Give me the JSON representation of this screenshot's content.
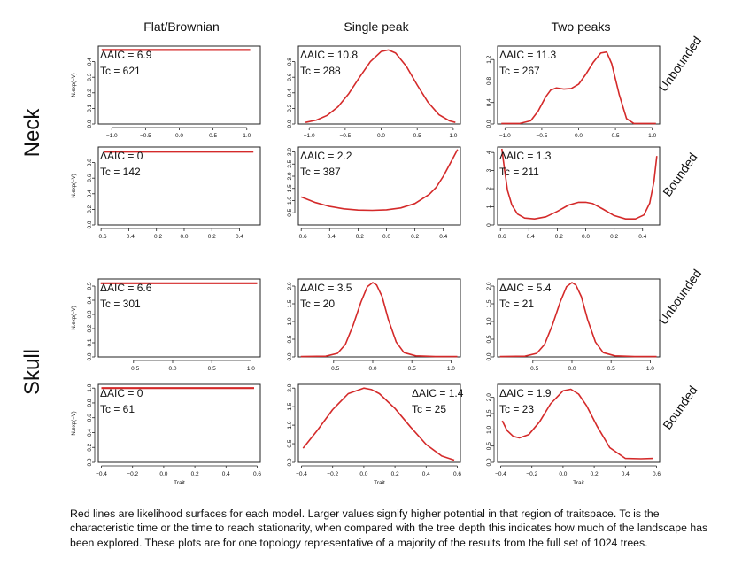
{
  "columns": [
    "Flat/Brownian",
    "Single peak",
    "Two peaks"
  ],
  "row_groups": [
    "Neck",
    "Skull"
  ],
  "row_types": [
    "Unbounded",
    "Bounded"
  ],
  "colors": {
    "curve": "#d42a2a",
    "axis": "#222222"
  },
  "caption": "Red lines are likelihood surfaces for each model. Larger values signify higher potential in that region of traitspace.  Tc is the characteristic time or the time to reach stationarity, when compared with the tree depth this indicates how much of the landscape has been explored. These plots are for one topology representative of a majority of the results from the full set of 1024 trees.",
  "chart_data": [
    {
      "type": "line",
      "group": "Neck",
      "model": "Flat/Brownian",
      "bounds": "Unbounded",
      "delta_aic": "ΔAIC = 6.9",
      "tc": "Tc = 621",
      "ylabel": "N.exp(−V)",
      "xlim": [
        -1.2,
        1.2
      ],
      "ylim": [
        0,
        0.5
      ],
      "xticks": [
        -1.0,
        -0.5,
        0.0,
        0.5,
        1.0
      ],
      "xtick_labels": [
        "−1.0",
        "−0.5",
        "0.0",
        "0.5",
        "1.0"
      ],
      "yticks": [
        0,
        0.1,
        0.2,
        0.3,
        0.4
      ],
      "ytick_labels": [
        "0.0",
        "0.1",
        "0.2",
        "0.3",
        "0.4"
      ],
      "x": [
        -1.15,
        1.05
      ],
      "y": [
        0.475,
        0.475
      ]
    },
    {
      "type": "line",
      "group": "Neck",
      "model": "Single peak",
      "bounds": "Unbounded",
      "delta_aic": "ΔAIC = 10.8",
      "tc": "Tc = 288",
      "xlim": [
        -1.15,
        1.1
      ],
      "ylim": [
        0,
        1.0
      ],
      "xticks": [
        -1.0,
        -0.5,
        0.0,
        0.5,
        1.0
      ],
      "xtick_labels": [
        "−1.0",
        "−0.5",
        "0.0",
        "0.5",
        "1.0"
      ],
      "yticks": [
        0,
        0.2,
        0.4,
        0.6,
        0.8
      ],
      "ytick_labels": [
        "0.0",
        "0.2",
        "0.4",
        "0.6",
        "0.8"
      ],
      "x": [
        -1.05,
        -0.9,
        -0.75,
        -0.6,
        -0.45,
        -0.3,
        -0.15,
        0.0,
        0.1,
        0.2,
        0.35,
        0.5,
        0.65,
        0.8,
        0.95,
        1.03
      ],
      "y": [
        0.02,
        0.05,
        0.11,
        0.22,
        0.39,
        0.6,
        0.8,
        0.93,
        0.95,
        0.91,
        0.74,
        0.5,
        0.28,
        0.12,
        0.04,
        0.02
      ]
    },
    {
      "type": "line",
      "group": "Neck",
      "model": "Two peaks",
      "bounds": "Unbounded",
      "delta_aic": "ΔAIC = 11.3",
      "tc": "Tc = 267",
      "xlim": [
        -1.1,
        1.1
      ],
      "ylim": [
        0,
        1.45
      ],
      "xticks": [
        -1.0,
        -0.5,
        0.0,
        0.5,
        1.0
      ],
      "xtick_labels": [
        "−1.0",
        "−0.5",
        "0.0",
        "0.5",
        "1.0"
      ],
      "yticks": [
        0,
        0.4,
        0.8,
        1.2
      ],
      "ytick_labels": [
        "0.0",
        "0.4",
        "0.8",
        "1.2"
      ],
      "x": [
        -1.05,
        -0.8,
        -0.65,
        -0.55,
        -0.45,
        -0.38,
        -0.3,
        -0.2,
        -0.1,
        0.0,
        0.1,
        0.2,
        0.3,
        0.38,
        0.45,
        0.55,
        0.65,
        0.75,
        1.05
      ],
      "y": [
        0.01,
        0.01,
        0.06,
        0.24,
        0.5,
        0.63,
        0.67,
        0.65,
        0.66,
        0.74,
        0.93,
        1.15,
        1.32,
        1.34,
        1.12,
        0.55,
        0.1,
        0.01,
        0.01
      ]
    },
    {
      "type": "line",
      "group": "Neck",
      "model": "Flat/Brownian",
      "bounds": "Bounded",
      "delta_aic": "ΔAIC = 0",
      "tc": "Tc = 142",
      "ylabel": "N.exp(−V)",
      "xlim": [
        -0.62,
        0.55
      ],
      "ylim": [
        0,
        1.0
      ],
      "xticks": [
        -0.6,
        -0.4,
        -0.2,
        0.0,
        0.2,
        0.4
      ],
      "xtick_labels": [
        "−0.6",
        "−0.4",
        "−0.2",
        "0.0",
        "0.2",
        "0.4"
      ],
      "yticks": [
        0,
        0.2,
        0.4,
        0.6,
        0.8
      ],
      "ytick_labels": [
        "0.0",
        "0.2",
        "0.4",
        "0.6",
        "0.8"
      ],
      "x": [
        -0.58,
        0.5
      ],
      "y": [
        0.94,
        0.94
      ]
    },
    {
      "type": "line",
      "group": "Neck",
      "model": "Single peak",
      "bounds": "Bounded",
      "delta_aic": "ΔAIC = 2.2",
      "tc": "Tc = 387",
      "xlim": [
        -0.62,
        0.52
      ],
      "ylim": [
        0,
        3.2
      ],
      "xticks": [
        -0.6,
        -0.4,
        -0.2,
        0.0,
        0.2,
        0.4
      ],
      "xtick_labels": [
        "−0.6",
        "−0.4",
        "−0.2",
        "0.0",
        "0.2",
        "0.4"
      ],
      "yticks": [
        0.5,
        1.0,
        1.5,
        2.0,
        2.5,
        3.0
      ],
      "ytick_labels": [
        "0.5",
        "1.0",
        "1.5",
        "2.0",
        "2.5",
        "3.0"
      ],
      "x": [
        -0.6,
        -0.5,
        -0.4,
        -0.3,
        -0.2,
        -0.1,
        0.0,
        0.1,
        0.2,
        0.3,
        0.35,
        0.4,
        0.45,
        0.5
      ],
      "y": [
        1.15,
        0.92,
        0.76,
        0.66,
        0.61,
        0.6,
        0.62,
        0.7,
        0.88,
        1.25,
        1.55,
        2.0,
        2.55,
        3.1
      ]
    },
    {
      "type": "line",
      "group": "Neck",
      "model": "Two peaks",
      "bounds": "Bounded",
      "delta_aic": "ΔAIC = 1.3",
      "tc": "Tc = 211",
      "xlim": [
        -0.62,
        0.52
      ],
      "ylim": [
        0,
        4.3
      ],
      "xticks": [
        -0.6,
        -0.4,
        -0.2,
        0.0,
        0.2,
        0.4
      ],
      "xtick_labels": [
        "−0.6",
        "−0.4",
        "−0.2",
        "0.0",
        "0.2",
        "0.4"
      ],
      "yticks": [
        0,
        1,
        2,
        3,
        4
      ],
      "ytick_labels": [
        "0",
        "1",
        "2",
        "3",
        "4"
      ],
      "x": [
        -0.59,
        -0.57,
        -0.55,
        -0.52,
        -0.48,
        -0.43,
        -0.36,
        -0.28,
        -0.2,
        -0.12,
        -0.05,
        0.0,
        0.05,
        0.12,
        0.2,
        0.28,
        0.35,
        0.41,
        0.45,
        0.48,
        0.5
      ],
      "y": [
        4.2,
        3.0,
        1.9,
        1.1,
        0.6,
        0.38,
        0.33,
        0.45,
        0.75,
        1.1,
        1.25,
        1.25,
        1.18,
        0.88,
        0.52,
        0.33,
        0.33,
        0.55,
        1.2,
        2.4,
        3.8
      ]
    },
    {
      "type": "line",
      "group": "Skull",
      "model": "Flat/Brownian",
      "bounds": "Unbounded",
      "delta_aic": "ΔAIC = 6.6",
      "tc": "Tc = 301",
      "ylabel": "N.exp(−V)",
      "xlim": [
        -0.95,
        1.12
      ],
      "ylim": [
        0,
        0.55
      ],
      "xticks": [
        -0.5,
        0.0,
        0.5,
        1.0
      ],
      "xtick_labels": [
        "−0.5",
        "0.0",
        "0.5",
        "1.0"
      ],
      "yticks": [
        0,
        0.1,
        0.2,
        0.3,
        0.4,
        0.5
      ],
      "ytick_labels": [
        "0.0",
        "0.1",
        "0.2",
        "0.3",
        "0.4",
        "0.5"
      ],
      "x": [
        -0.92,
        1.08
      ],
      "y": [
        0.52,
        0.52
      ]
    },
    {
      "type": "line",
      "group": "Skull",
      "model": "Single peak",
      "bounds": "Unbounded",
      "delta_aic": "ΔAIC = 3.5",
      "tc": "Tc = 20",
      "xlim": [
        -0.95,
        1.12
      ],
      "ylim": [
        0,
        2.2
      ],
      "xticks": [
        -0.5,
        0.0,
        0.5,
        1.0
      ],
      "xtick_labels": [
        "−0.5",
        "0.0",
        "0.5",
        "1.0"
      ],
      "yticks": [
        0,
        0.5,
        1.0,
        1.5,
        2.0
      ],
      "ytick_labels": [
        "0.0",
        "0.5",
        "1.0",
        "1.5",
        "2.0"
      ],
      "x": [
        -0.92,
        -0.6,
        -0.45,
        -0.35,
        -0.25,
        -0.15,
        -0.07,
        0.0,
        0.05,
        0.12,
        0.2,
        0.3,
        0.4,
        0.55,
        0.8,
        1.08
      ],
      "y": [
        0.01,
        0.02,
        0.1,
        0.35,
        0.9,
        1.55,
        1.98,
        2.1,
        2.03,
        1.7,
        1.05,
        0.42,
        0.12,
        0.03,
        0.01,
        0.01
      ]
    },
    {
      "type": "line",
      "group": "Skull",
      "model": "Two peaks",
      "bounds": "Unbounded",
      "delta_aic": "ΔAIC = 5.4",
      "tc": "Tc = 21",
      "xlim": [
        -0.95,
        1.12
      ],
      "ylim": [
        0,
        2.2
      ],
      "xticks": [
        -0.5,
        0.0,
        0.5,
        1.0
      ],
      "xtick_labels": [
        "−0.5",
        "0.0",
        "0.5",
        "1.0"
      ],
      "yticks": [
        0,
        0.5,
        1.0,
        1.5,
        2.0
      ],
      "ytick_labels": [
        "0.0",
        "0.5",
        "1.0",
        "1.5",
        "2.0"
      ],
      "x": [
        -0.92,
        -0.6,
        -0.45,
        -0.35,
        -0.25,
        -0.15,
        -0.07,
        0.0,
        0.05,
        0.12,
        0.2,
        0.3,
        0.4,
        0.55,
        0.8,
        1.08
      ],
      "y": [
        0.01,
        0.02,
        0.1,
        0.35,
        0.9,
        1.55,
        1.98,
        2.1,
        2.03,
        1.7,
        1.05,
        0.42,
        0.12,
        0.03,
        0.01,
        0.01
      ]
    },
    {
      "type": "line",
      "group": "Skull",
      "model": "Flat/Brownian",
      "bounds": "Bounded",
      "delta_aic": "ΔAIC = 0",
      "tc": "Tc = 61",
      "ylabel": "N.exp(−V)",
      "xlabel": "Trait",
      "xlim": [
        -0.42,
        0.62
      ],
      "ylim": [
        0,
        1.05
      ],
      "xticks": [
        -0.4,
        -0.2,
        0.0,
        0.2,
        0.4,
        0.6
      ],
      "xtick_labels": [
        "−0.4",
        "−0.2",
        "0.0",
        "0.2",
        "0.4",
        "0.6"
      ],
      "yticks": [
        0,
        0.2,
        0.4,
        0.6,
        0.8,
        1.0
      ],
      "ytick_labels": [
        "0.0",
        "0.2",
        "0.4",
        "0.6",
        "0.8",
        "1.0"
      ],
      "x": [
        -0.4,
        0.58
      ],
      "y": [
        1.0,
        1.0
      ]
    },
    {
      "type": "line",
      "group": "Skull",
      "model": "Single peak",
      "bounds": "Bounded",
      "delta_aic": "ΔAIC = 1.4",
      "tc": "Tc = 25",
      "xlabel": "Trait",
      "xlim": [
        -0.42,
        0.62
      ],
      "ylim": [
        0,
        2.1
      ],
      "xticks": [
        -0.4,
        -0.2,
        0.0,
        0.2,
        0.4,
        0.6
      ],
      "xtick_labels": [
        "−0.4",
        "−0.2",
        "0.0",
        "0.2",
        "0.4",
        "0.6"
      ],
      "yticks": [
        0,
        0.5,
        1.0,
        1.5,
        2.0
      ],
      "ytick_labels": [
        "0.0",
        "0.5",
        "1.0",
        "1.5",
        "2.0"
      ],
      "x": [
        -0.39,
        -0.3,
        -0.2,
        -0.1,
        0.0,
        0.05,
        0.1,
        0.2,
        0.3,
        0.4,
        0.5,
        0.58
      ],
      "y": [
        0.38,
        0.85,
        1.42,
        1.85,
        2.0,
        1.96,
        1.85,
        1.45,
        0.95,
        0.48,
        0.17,
        0.06
      ]
    },
    {
      "type": "line",
      "group": "Skull",
      "model": "Two peaks",
      "bounds": "Bounded",
      "delta_aic": "ΔAIC = 1.9",
      "tc": "Tc = 23",
      "xlabel": "Trait",
      "xlim": [
        -0.42,
        0.62
      ],
      "ylim": [
        0,
        2.4
      ],
      "xticks": [
        -0.4,
        -0.2,
        0.0,
        0.2,
        0.4,
        0.6
      ],
      "xtick_labels": [
        "−0.4",
        "−0.2",
        "0.0",
        "0.2",
        "0.4",
        "0.6"
      ],
      "yticks": [
        0,
        0.5,
        1.0,
        1.5,
        2.0
      ],
      "ytick_labels": [
        "0.0",
        "0.5",
        "1.0",
        "1.5",
        "2.0"
      ],
      "x": [
        -0.39,
        -0.36,
        -0.32,
        -0.28,
        -0.22,
        -0.15,
        -0.08,
        0.0,
        0.05,
        0.1,
        0.15,
        0.22,
        0.3,
        0.4,
        0.5,
        0.58
      ],
      "y": [
        1.28,
        0.98,
        0.8,
        0.75,
        0.85,
        1.25,
        1.8,
        2.2,
        2.25,
        2.1,
        1.75,
        1.1,
        0.45,
        0.12,
        0.11,
        0.12
      ]
    }
  ]
}
